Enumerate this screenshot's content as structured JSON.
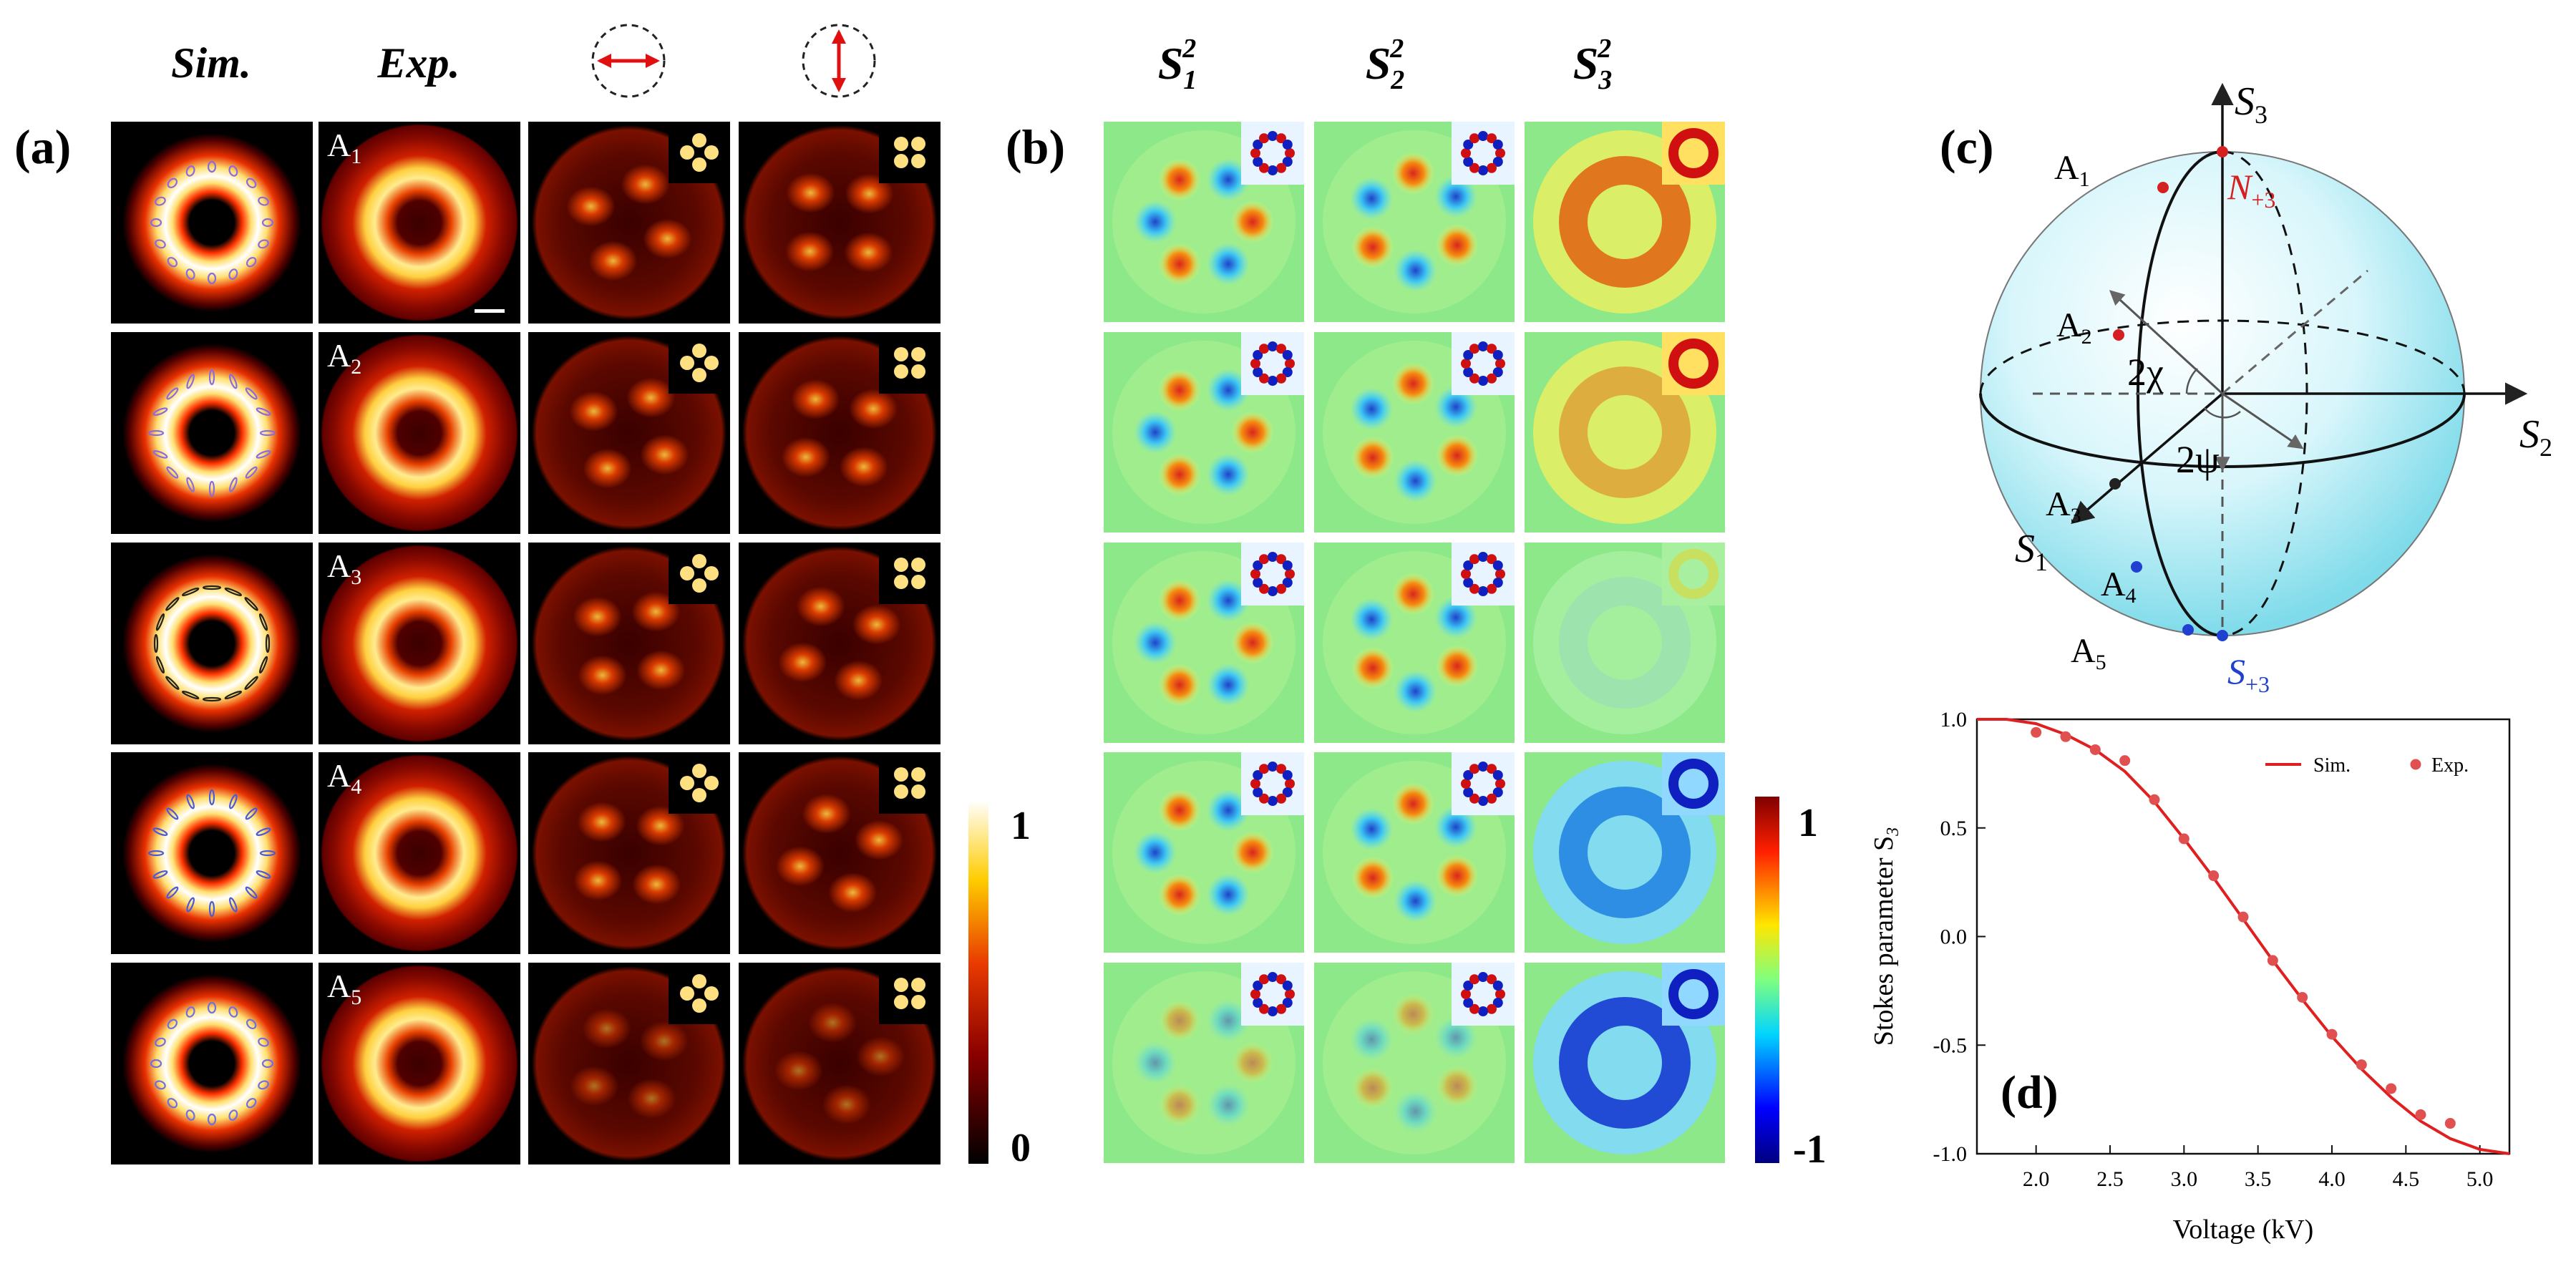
{
  "panel_labels": {
    "a": "(a)",
    "b": "(b)",
    "c": "(c)",
    "d": "(d)"
  },
  "panel_a": {
    "col_headers": {
      "sim": "Sim.",
      "exp": "Exp."
    },
    "row_labels": [
      {
        "letter": "A",
        "sub": "1"
      },
      {
        "letter": "A",
        "sub": "2"
      },
      {
        "letter": "A",
        "sub": "3"
      },
      {
        "letter": "A",
        "sub": "4"
      },
      {
        "letter": "A",
        "sub": "5"
      }
    ],
    "ellipse_colors": [
      "#8a6be0",
      "#8a6be0",
      "#222222",
      "#4a5ad8",
      "#7070e0"
    ],
    "colorbar": {
      "max": "1",
      "min": "0"
    },
    "polarizer_icons": [
      "horizontal-polarizer-icon",
      "vertical-polarizer-icon"
    ]
  },
  "panel_b": {
    "col_headers": [
      {
        "base": "S",
        "sub": "1",
        "sup": "2"
      },
      {
        "base": "S",
        "sub": "2",
        "sup": "2"
      },
      {
        "base": "S",
        "sub": "3",
        "sup": "2"
      }
    ],
    "s3_sign": [
      "pos",
      "pos",
      "zero",
      "neg",
      "neg"
    ],
    "colorbar": {
      "max": "1",
      "min": "-1"
    }
  },
  "panel_c": {
    "axes": {
      "s3": {
        "base": "S",
        "sub": "3"
      },
      "s2": {
        "base": "S",
        "sub": "2"
      },
      "s1": {
        "base": "S",
        "sub": "1"
      }
    },
    "angles": {
      "chi": "2χ",
      "psi": "2ψ"
    },
    "north": {
      "base": "N",
      "sub": "+3"
    },
    "south": {
      "base": "S",
      "sub": "+3"
    },
    "points": [
      {
        "letter": "A",
        "sub": "1",
        "color": "#d42020"
      },
      {
        "letter": "A",
        "sub": "2",
        "color": "#d42020"
      },
      {
        "letter": "A",
        "sub": "3",
        "color": "#222222"
      },
      {
        "letter": "A",
        "sub": "4",
        "color": "#2040d0"
      },
      {
        "letter": "A",
        "sub": "5",
        "color": "#2040d0"
      }
    ]
  },
  "chart_data": {
    "type": "line",
    "title": "",
    "xlabel": "Voltage (kV)",
    "ylabel": "Stokes parameter S",
    "ylabel_sub": "3",
    "xlim": [
      1.6,
      5.2
    ],
    "ylim": [
      -1.0,
      1.0
    ],
    "xticks": [
      "2.0",
      "2.5",
      "3.0",
      "3.5",
      "4.0",
      "4.5",
      "5.0"
    ],
    "yticks": [
      "1.0",
      "0.5",
      "0.0",
      "-0.5",
      "-1.0"
    ],
    "legend_position": "top-right",
    "series": [
      {
        "name": "Sim.",
        "kind": "line",
        "color": "#e02020",
        "x": [
          1.6,
          1.8,
          2.0,
          2.2,
          2.4,
          2.6,
          2.8,
          3.0,
          3.2,
          3.4,
          3.6,
          3.8,
          4.0,
          4.2,
          4.4,
          4.6,
          4.8,
          5.0,
          5.2
        ],
        "y": [
          1.0,
          1.0,
          0.98,
          0.93,
          0.86,
          0.76,
          0.62,
          0.45,
          0.27,
          0.08,
          -0.11,
          -0.29,
          -0.46,
          -0.61,
          -0.74,
          -0.85,
          -0.93,
          -0.98,
          -1.0
        ]
      },
      {
        "name": "Exp.",
        "kind": "scatter",
        "color": "#e05050",
        "x": [
          2.0,
          2.2,
          2.4,
          2.6,
          2.8,
          3.0,
          3.2,
          3.4,
          3.6,
          3.8,
          4.0,
          4.2,
          4.4,
          4.6,
          4.8
        ],
        "y": [
          0.94,
          0.92,
          0.86,
          0.81,
          0.63,
          0.45,
          0.28,
          0.09,
          -0.11,
          -0.28,
          -0.45,
          -0.59,
          -0.7,
          -0.82,
          -0.86
        ]
      }
    ]
  }
}
